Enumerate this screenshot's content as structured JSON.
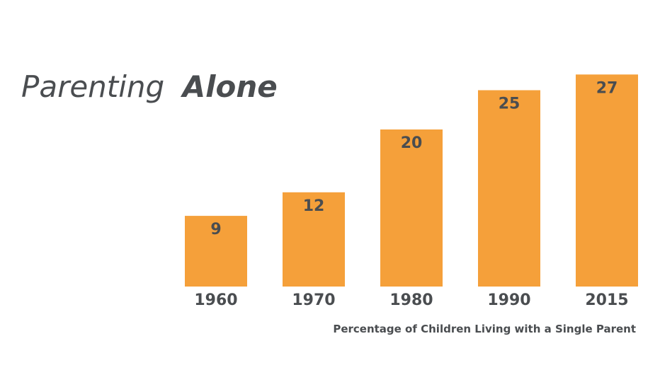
{
  "chart_data": {
    "type": "bar",
    "title_light": "Parenting",
    "title_bold": "Alone",
    "categories": [
      "1960",
      "1970",
      "1980",
      "1990",
      "2015"
    ],
    "values": [
      9,
      12,
      20,
      25,
      27
    ],
    "xlabel": "Percentage of Children Living with a Single Parent",
    "ylabel": "",
    "ylim": [
      0,
      30
    ],
    "grid": false,
    "bar_color": "#f5a03a",
    "text_color": "#4a4d50"
  }
}
